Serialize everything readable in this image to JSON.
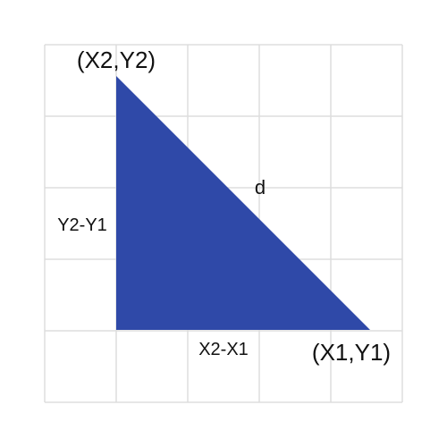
{
  "diagram": {
    "triangle_color": "#2f49a8",
    "grid_color": "#dddddd",
    "labels": {
      "point_top": "(X2,Y2)",
      "point_right": "(X1,Y1)",
      "hypotenuse": "d",
      "vertical_leg": "Y2-Y1",
      "horizontal_leg": "X2-X1"
    }
  }
}
